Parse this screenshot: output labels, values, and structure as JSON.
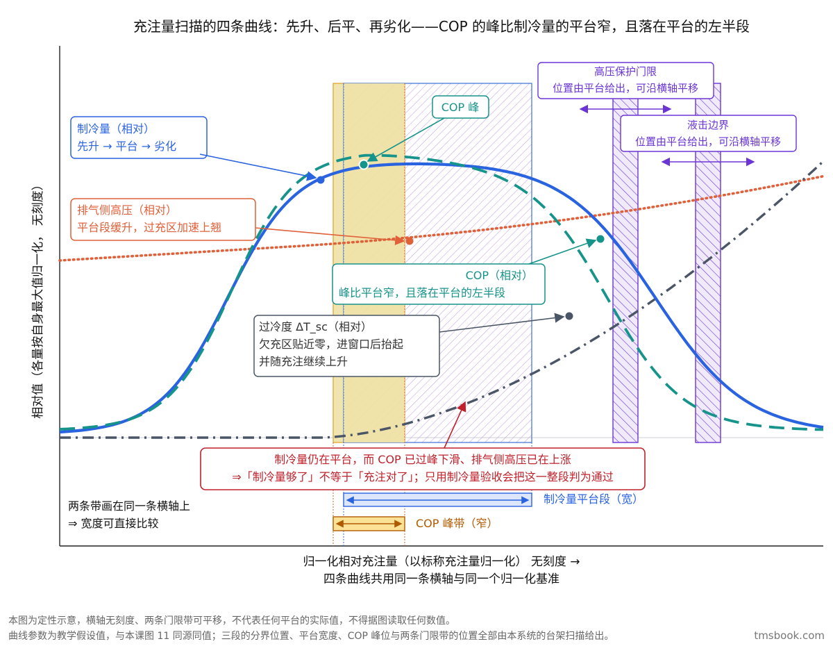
{
  "chart_data": {
    "type": "line",
    "title": "充注量扫描的四条曲线：先升、后平、再劣化——COP 的峰比制冷量的平台窄，且落在平台的左半段",
    "xlabel_line1": "归一化相对充注量（以标称充注量归一化）    无刻度    →",
    "xlabel_line2": "四条曲线共用同一条横轴与同一个归一化基准",
    "ylabel": "相对值（各量按自身最大值归一化，  无刻度）",
    "x_range": [
      0,
      1
    ],
    "y_range": [
      0,
      1
    ],
    "grid": false,
    "series": [
      {
        "key": "cooling",
        "color": "#2a63e0"
      },
      {
        "key": "cop",
        "color": "#16938a"
      },
      {
        "key": "discharge",
        "color": "#e0603a"
      },
      {
        "key": "subcool",
        "color": "#4a5566"
      }
    ],
    "bands": {
      "cop_band": {
        "x": [
          0.357,
          0.473
        ],
        "color": "#e0a020"
      },
      "cooling_plateau": {
        "x": [
          0.373,
          0.66
        ],
        "color": "#3b6fd6"
      },
      "hp_limit": {
        "x": [
          0.86,
          0.9
        ],
        "color": "#7a3fe0"
      },
      "liquid_limit": {
        "x": [
          1.0,
          1.04
        ],
        "color": "#7a3fe0"
      }
    },
    "annotations": {
      "cooling": {
        "line1": "制冷量（相对）",
        "line2": "先升 → 平台 → 劣化"
      },
      "discharge": {
        "line1": "排气侧高压（相对）",
        "line2": "平台段缓升，过充区加速上翘"
      },
      "cop_peak": "COP 峰",
      "cop": {
        "line1": "COP（相对）",
        "line2": "峰比平台窄，且落在平台的左半段"
      },
      "subcool": {
        "line1": "过冷度 ΔT_sc（相对）",
        "line2": "欠充区贴近零，进窗口后抬起",
        "line3": "并随充注继续上升"
      },
      "hp_limit": {
        "line1": "高压保护门限",
        "line2": "位置由平台给出，可沿横轴平移"
      },
      "liquid_limit": {
        "line1": "液击边界",
        "line2": "位置由平台给出，可沿横轴平移"
      },
      "warning": {
        "line1": "制冷量仍在平台，而 COP 已过峰下滑、排气侧高压已在上涨",
        "line2": "⇒「制冷量够了」不等于「充注对了」；只用制冷量验收会把这一整段判为通过"
      }
    },
    "legend_bands": {
      "note_line1": "两条带画在同一条横轴上",
      "note_line2": "⇒ 宽度可直接比较",
      "plateau_label": "制冷量平台段（宽）",
      "cop_label": "COP 峰带（窄）"
    },
    "footer": {
      "line1": "本图为定性示意，横轴无刻度、两条门限带可平移，不代表任何平台的实际值，不得据图读取任何数值。",
      "line2": "曲线参数为教学假设值，与本课图 11 同源同值；三段的分界位置、平台宽度、COP 峰位与两条门限带的位置全部由本系统的台架扫描给出。",
      "brand": "tmsbook.com"
    }
  }
}
